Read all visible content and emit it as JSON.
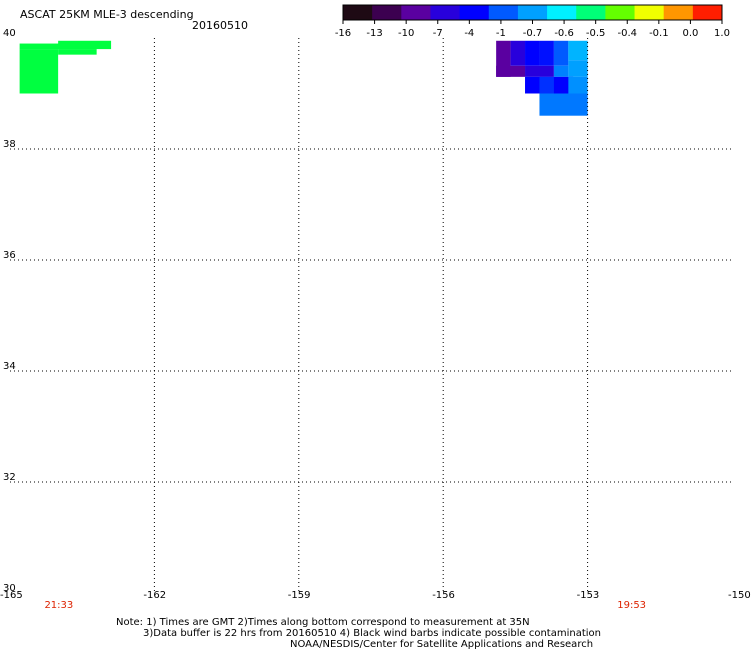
{
  "header": {
    "title": "ASCAT 25KM MLE-3 descending",
    "date": "20160510"
  },
  "colorbar": {
    "tick_labels": [
      "-16",
      "-13",
      "-10",
      "-7",
      "-4",
      "-1",
      "-0.7",
      "-0.6",
      "-0.5",
      "-0.4",
      "-0.1",
      "0.0",
      "1.0"
    ],
    "colors": [
      "#1e0a14",
      "#3c0050",
      "#5a00a0",
      "#2800dc",
      "#0000ff",
      "#005aff",
      "#00a0ff",
      "#00f0ff",
      "#00ff78",
      "#64ff00",
      "#f0ff00",
      "#ff9600",
      "#ff1e00"
    ]
  },
  "map": {
    "lat_labels": [
      "40",
      "38",
      "36",
      "34",
      "32",
      "30"
    ],
    "lon_labels": [
      "-165",
      "-162",
      "-159",
      "-156",
      "-153",
      "-150"
    ],
    "lat_values": [
      40,
      38,
      36,
      34,
      32,
      30
    ],
    "lon_values": [
      -165,
      -162,
      -159,
      -156,
      -153,
      -150
    ],
    "times": [
      {
        "label": "21:33",
        "lon": -164.7
      },
      {
        "label": "19:53",
        "lon": -152.8
      }
    ],
    "time_color": "#dd2200",
    "grid": "dotted",
    "data_cells": [
      {
        "lon": [
          -164.8,
          -164.0
        ],
        "lat": [
          39.0,
          39.8
        ],
        "color": "#00ff40"
      },
      {
        "lon": [
          -164.8,
          -163.2
        ],
        "lat": [
          39.8,
          39.9
        ],
        "color": "#00ff40"
      },
      {
        "lon": [
          -164.0,
          -163.2
        ],
        "lat": [
          39.7,
          39.8
        ],
        "color": "#00ff40"
      },
      {
        "lon": [
          -164.0,
          -162.9
        ],
        "lat": [
          39.8,
          39.95
        ],
        "color": "#00ff40"
      },
      {
        "lon": [
          -154.9,
          -154.6
        ],
        "lat": [
          39.3,
          39.95
        ],
        "color": "#5a00a0"
      },
      {
        "lon": [
          -154.9,
          -154.3
        ],
        "lat": [
          39.3,
          39.5
        ],
        "color": "#5a00a0"
      },
      {
        "lon": [
          -154.6,
          -154.3
        ],
        "lat": [
          39.5,
          39.95
        ],
        "color": "#2800dc"
      },
      {
        "lon": [
          -154.3,
          -154.0
        ],
        "lat": [
          39.5,
          39.95
        ],
        "color": "#0000ff"
      },
      {
        "lon": [
          -154.3,
          -153.7
        ],
        "lat": [
          39.3,
          39.5
        ],
        "color": "#2800dc"
      },
      {
        "lon": [
          -154.0,
          -153.7
        ],
        "lat": [
          39.5,
          39.95
        ],
        "color": "#0010ff"
      },
      {
        "lon": [
          -153.7,
          -153.4
        ],
        "lat": [
          39.5,
          39.95
        ],
        "color": "#005aff"
      },
      {
        "lon": [
          -153.4,
          -153.0
        ],
        "lat": [
          39.6,
          39.95
        ],
        "color": "#00b4ff"
      },
      {
        "lon": [
          -153.4,
          -153.0
        ],
        "lat": [
          39.3,
          39.6
        ],
        "color": "#00a0ff"
      },
      {
        "lon": [
          -153.7,
          -153.4
        ],
        "lat": [
          39.3,
          39.5
        ],
        "color": "#0080ff"
      },
      {
        "lon": [
          -154.3,
          -153.3
        ],
        "lat": [
          39.0,
          39.3
        ],
        "color": "#0000ff"
      },
      {
        "lon": [
          -154.0,
          -153.7
        ],
        "lat": [
          39.0,
          39.3
        ],
        "color": "#0030ff"
      },
      {
        "lon": [
          -154.0,
          -153.0
        ],
        "lat": [
          38.6,
          39.0
        ],
        "color": "#0078ff"
      },
      {
        "lon": [
          -153.4,
          -153.0
        ],
        "lat": [
          39.0,
          39.3
        ],
        "color": "#0090ff"
      }
    ]
  },
  "footer": {
    "line1": "Note: 1) Times are GMT 2)Times along bottom correspond to measurement at 35N",
    "line2": "3)Data buffer is 22 hrs from 20160510 4) Black wind barbs indicate possible contamination",
    "line3": "NOAA/NESDIS/Center for Satellite Applications and Research"
  }
}
